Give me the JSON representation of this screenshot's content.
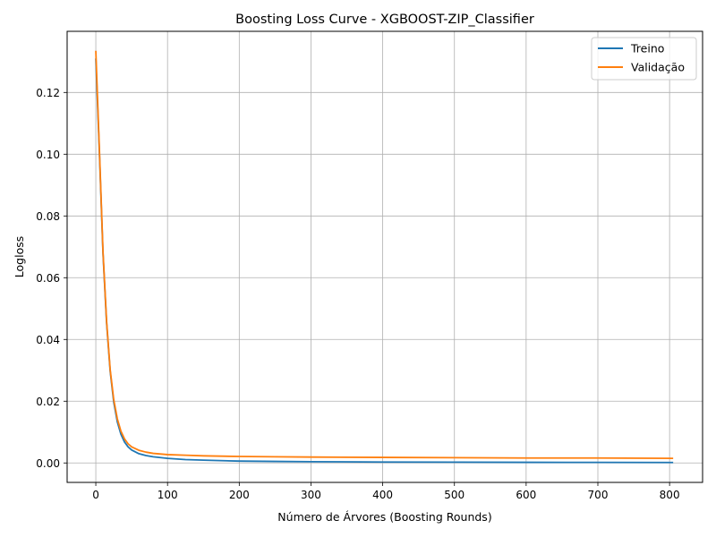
{
  "chart_data": {
    "type": "line",
    "title": "Boosting Loss Curve - XGBOOST-ZIP_Classifier",
    "xlabel": "Número de Árvores (Boosting Rounds)",
    "ylabel": "Logloss",
    "xlim": [
      -40,
      846
    ],
    "ylim": [
      -0.0063,
      0.1398
    ],
    "xticks": [
      0,
      100,
      200,
      300,
      400,
      500,
      600,
      700,
      800
    ],
    "xtick_labels": [
      "0",
      "100",
      "200",
      "300",
      "400",
      "500",
      "600",
      "700",
      "800"
    ],
    "yticks": [
      0.0,
      0.02,
      0.04,
      0.06,
      0.08,
      0.1,
      0.12
    ],
    "ytick_labels": [
      "0.00",
      "0.02",
      "0.04",
      "0.06",
      "0.08",
      "0.10",
      "0.12"
    ],
    "grid": true,
    "legend_position": "top-right",
    "series": [
      {
        "name": "Treino",
        "color": "#1f77b4",
        "x": [
          0,
          5,
          10,
          15,
          20,
          25,
          30,
          35,
          40,
          45,
          50,
          60,
          70,
          80,
          100,
          125,
          150,
          200,
          250,
          300,
          400,
          500,
          600,
          700,
          805
        ],
        "y": [
          0.131,
          0.1005,
          0.068,
          0.0455,
          0.0298,
          0.0197,
          0.0133,
          0.0093,
          0.0068,
          0.0052,
          0.0042,
          0.003,
          0.0024,
          0.002,
          0.0015,
          0.0011,
          0.0009,
          0.0006,
          0.0005,
          0.0004,
          0.0003,
          0.00025,
          0.0002,
          0.00018,
          0.00015
        ]
      },
      {
        "name": "Validação",
        "color": "#ff7f0e",
        "x": [
          0,
          5,
          10,
          15,
          20,
          25,
          30,
          35,
          40,
          45,
          50,
          60,
          70,
          80,
          100,
          125,
          150,
          200,
          250,
          300,
          400,
          500,
          600,
          700,
          805
        ],
        "y": [
          0.1335,
          0.1015,
          0.0685,
          0.046,
          0.0303,
          0.0205,
          0.0143,
          0.0103,
          0.0078,
          0.0062,
          0.0052,
          0.0041,
          0.0035,
          0.0031,
          0.0027,
          0.0025,
          0.0023,
          0.0021,
          0.002,
          0.0019,
          0.0018,
          0.0017,
          0.0016,
          0.0016,
          0.0015
        ]
      }
    ]
  }
}
